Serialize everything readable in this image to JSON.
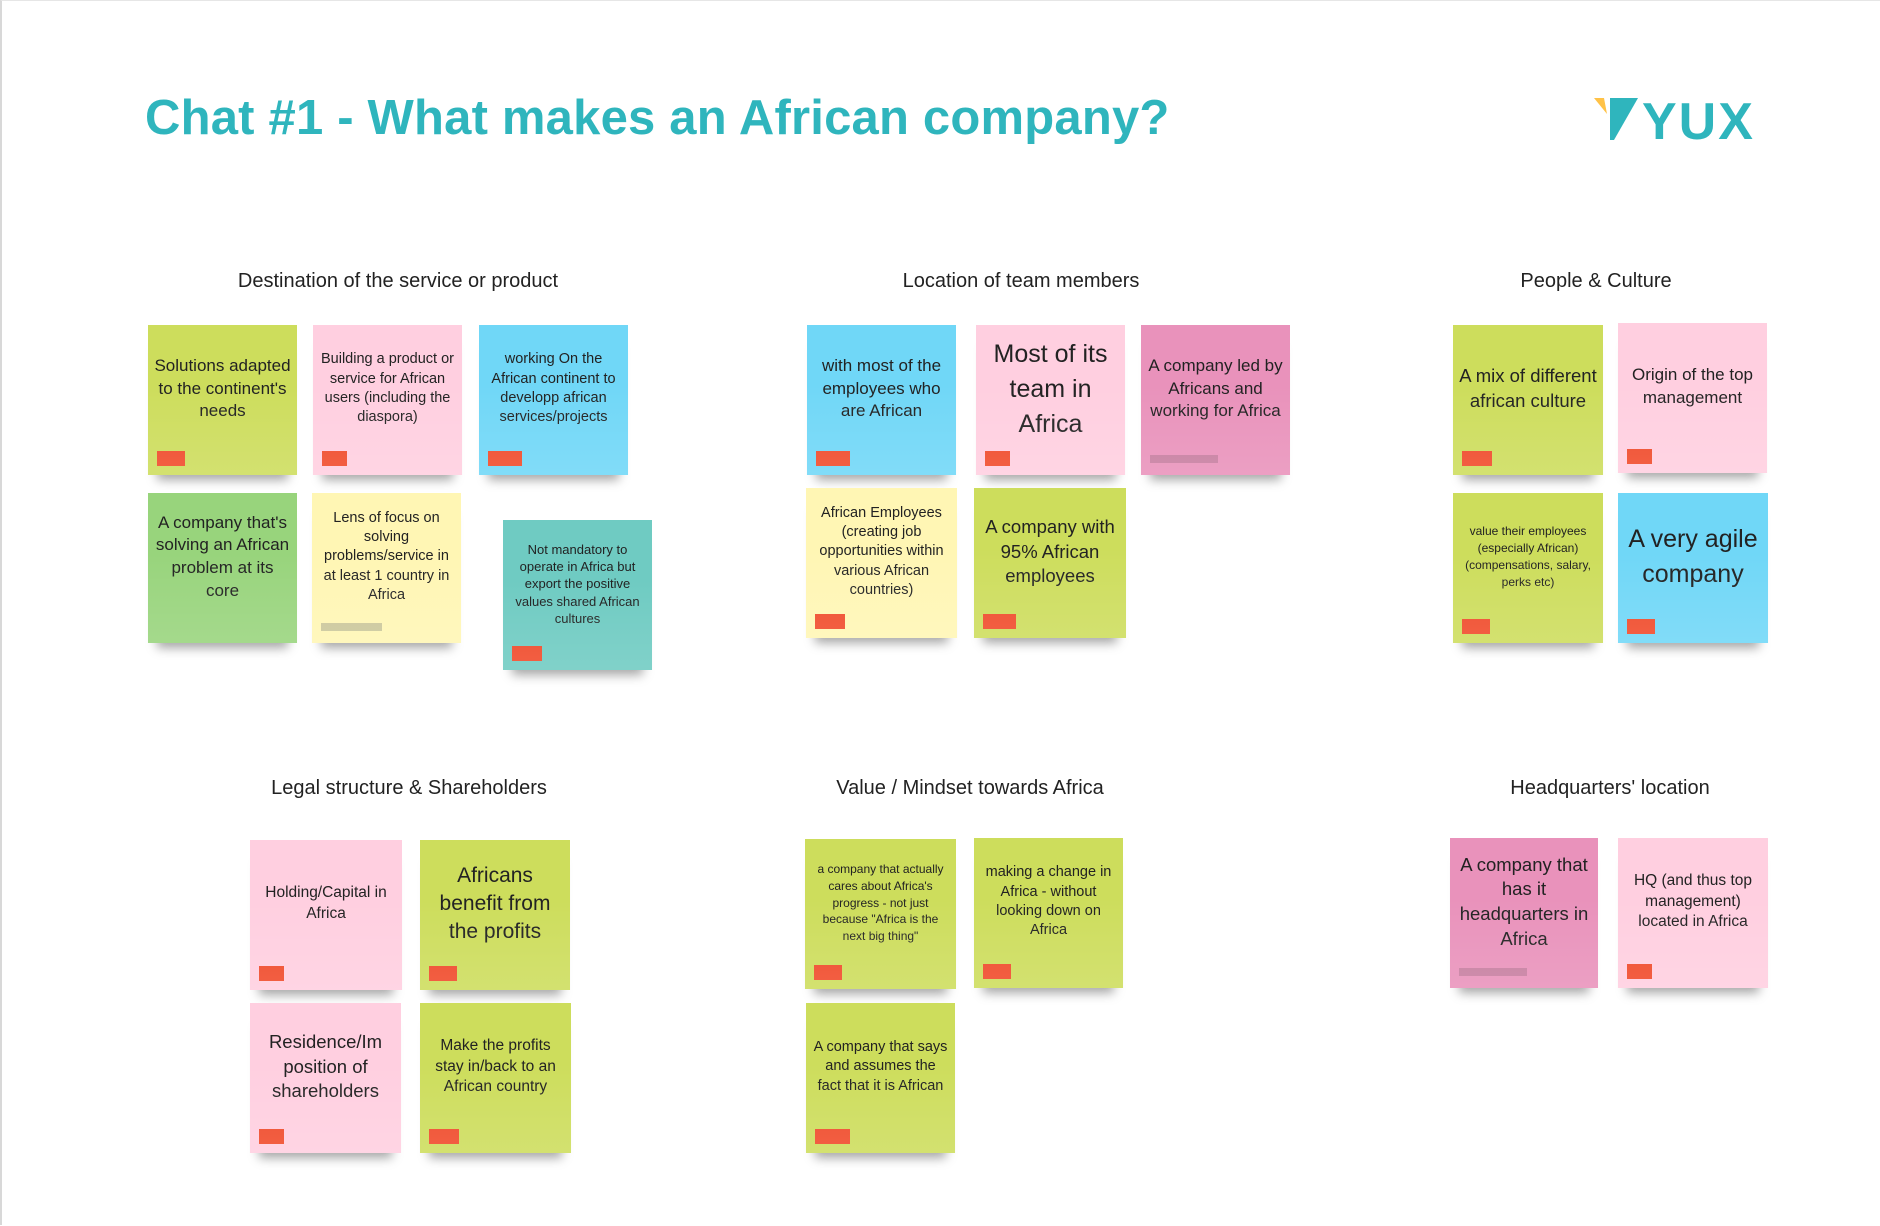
{
  "header": {
    "title": "Chat #1 - What makes an African company?",
    "logo_text": "YUX",
    "brand_color": "#2fb5bd",
    "logo_accent_color": "#ffc247"
  },
  "tag_colors": {
    "red": "#f04a2a",
    "olive": "#cbc79a",
    "mauve": "#c77ea0"
  },
  "sections": [
    {
      "title": "Destination of the service or product",
      "notes": [
        {
          "text": "Solutions adapted to the continent's needs",
          "color": "#cddd5c",
          "tag": "#f04a2a"
        },
        {
          "text": "Building a product or service for African users (including the diaspora)",
          "color": "#ffcfe0",
          "tag": "#f04a2a"
        },
        {
          "text": "working On the African continent to developp african services/projects",
          "color": "#70d7f7",
          "tag": "#f04a2a"
        },
        {
          "text": "A company that's solving an African problem at its core",
          "color": "#98d47c",
          "tag": "#f04a2a"
        },
        {
          "text": "Lens of focus on solving problems/service in at least 1 country in Africa",
          "color": "#fff6b4",
          "tag": "#cbc79a"
        },
        {
          "text": "Not mandatory to operate in Africa but export the positive values shared African cultures",
          "color": "#6fcbc2",
          "tag": "#f04a2a"
        }
      ]
    },
    {
      "title": "Location of team members",
      "notes": [
        {
          "text": "with most of the employees who are African",
          "color": "#70d7f7",
          "tag": "#f04a2a"
        },
        {
          "text": "Most of its team in Africa",
          "color": "#ffcfe0",
          "tag": "#f04a2a"
        },
        {
          "text": "A company led by Africans and working for Africa",
          "color": "#e992bb",
          "tag": "#c77ea0"
        },
        {
          "text": "African Employees (creating job opportunities within various African countries)",
          "color": "#fff6b4",
          "tag": "#f04a2a"
        },
        {
          "text": "A company with 95% African employees",
          "color": "#cddd5c",
          "tag": "#f04a2a"
        }
      ]
    },
    {
      "title": "People & Culture",
      "notes": [
        {
          "text": "A mix of different african culture",
          "color": "#cddd5c",
          "tag": "#f04a2a"
        },
        {
          "text": "Origin of the top management",
          "color": "#ffcfe0",
          "tag": "#f04a2a"
        },
        {
          "text": "value their employees (especially African) (compensations, salary, perks etc)",
          "color": "#cddd5c",
          "tag": "#f04a2a"
        },
        {
          "text": "A very agile company",
          "color": "#70d7f7",
          "tag": "#f04a2a"
        }
      ]
    },
    {
      "title": "Legal structure & Shareholders",
      "notes": [
        {
          "text": "Holding/Capital in Africa",
          "color": "#ffcfe0",
          "tag": "#f04a2a"
        },
        {
          "text": "Africans benefit from the profits",
          "color": "#cddd5c",
          "tag": "#f04a2a"
        },
        {
          "text": "Residence/Im position of shareholders",
          "color": "#ffcfe0",
          "tag": "#f04a2a"
        },
        {
          "text": "Make the profits stay in/back to an African country",
          "color": "#cddd5c",
          "tag": "#f04a2a"
        }
      ]
    },
    {
      "title": "Value / Mindset towards Africa",
      "notes": [
        {
          "text": "a company that actually cares about Africa's progress - not just because \"Africa is the next big thing\"",
          "color": "#cddd5c",
          "tag": "#f04a2a"
        },
        {
          "text": "making a change in Africa - without looking down on Africa",
          "color": "#cddd5c",
          "tag": "#f04a2a"
        },
        {
          "text": "A company that says and assumes the fact that it is African",
          "color": "#cddd5c",
          "tag": "#f04a2a"
        }
      ]
    },
    {
      "title": "Headquarters' location",
      "notes": [
        {
          "text": "A company that has it headquarters in Africa",
          "color": "#e992bb",
          "tag": "#c77ea0"
        },
        {
          "text": "HQ (and thus top management) located in Africa",
          "color": "#ffcfe0",
          "tag": "#f04a2a"
        }
      ]
    }
  ]
}
